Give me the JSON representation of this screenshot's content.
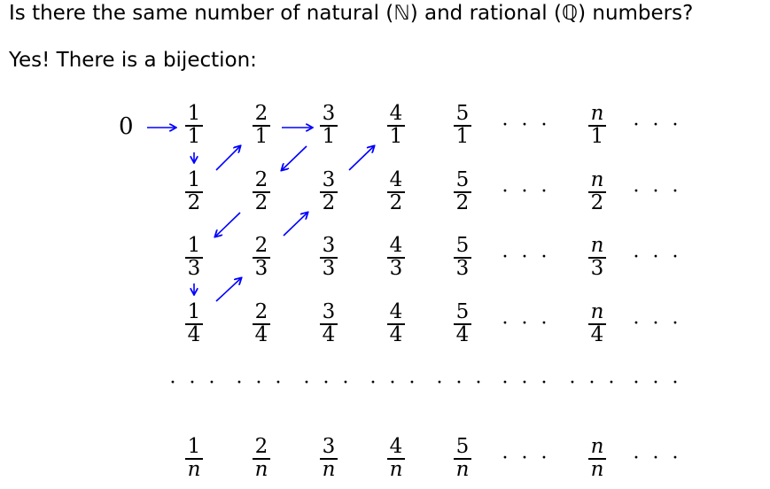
{
  "text": {
    "question_pre": "Is there the same number of natural (",
    "natural_symbol": "ℕ",
    "question_mid": ") and rational (",
    "rational_symbol": "ℚ",
    "question_post": ") numbers?",
    "answer": "Yes! There is a bijection:"
  },
  "grid": {
    "zero": "0",
    "ellipsis": "· · ·",
    "rows": [
      {
        "den": "1",
        "cells": [
          {
            "num": "1"
          },
          {
            "num": "2"
          },
          {
            "num": "3"
          },
          {
            "num": "4"
          },
          {
            "num": "5"
          }
        ],
        "last_num": "n"
      },
      {
        "den": "2",
        "cells": [
          {
            "num": "1"
          },
          {
            "num": "2"
          },
          {
            "num": "3"
          },
          {
            "num": "4"
          },
          {
            "num": "5"
          }
        ],
        "last_num": "n"
      },
      {
        "den": "3",
        "cells": [
          {
            "num": "1"
          },
          {
            "num": "2"
          },
          {
            "num": "3"
          },
          {
            "num": "4"
          },
          {
            "num": "5"
          }
        ],
        "last_num": "n"
      },
      {
        "den": "4",
        "cells": [
          {
            "num": "1"
          },
          {
            "num": "2"
          },
          {
            "num": "3"
          },
          {
            "num": "4"
          },
          {
            "num": "5"
          }
        ],
        "last_num": "n"
      },
      {
        "den": "n",
        "cells": [
          {
            "num": "1"
          },
          {
            "num": "2"
          },
          {
            "num": "3"
          },
          {
            "num": "4"
          },
          {
            "num": "5"
          }
        ],
        "last_num": "n"
      }
    ]
  },
  "colors": {
    "text": "#000000",
    "arrow_black": "#000000",
    "arrow_blue": "#0000ff"
  }
}
